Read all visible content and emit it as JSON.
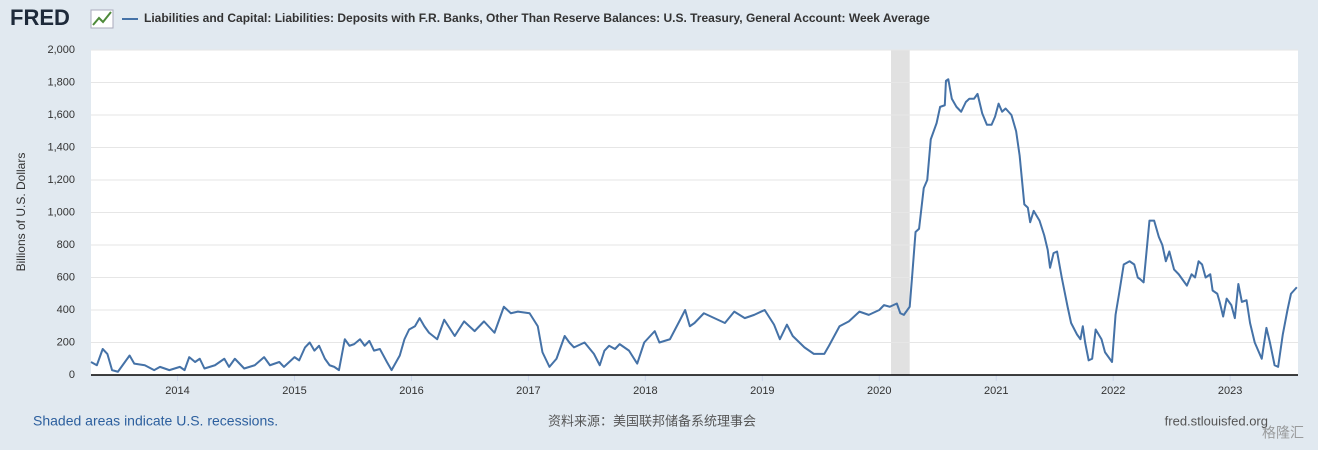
{
  "logo": "FRED",
  "footer": {
    "note": "Shaded areas indicate U.S. recessions.",
    "source": "资料来源：美国联邦储备系统理事会",
    "site": "fred.stlouisfed.org",
    "watermark": "格隆汇"
  },
  "chart_data": {
    "type": "line",
    "ylabel": "Billions of U.S. Dollars",
    "xlim": [
      2013.26,
      2023.58
    ],
    "xticks": [
      2014,
      2015,
      2016,
      2017,
      2018,
      2019,
      2020,
      2021,
      2022,
      2023
    ],
    "ylim": [
      0,
      2000
    ],
    "yticks": [
      0,
      200,
      400,
      600,
      800,
      {
        "value": 1000,
        "label": "1,000"
      },
      {
        "value": 1200,
        "label": "1,200"
      },
      {
        "value": 1400,
        "label": "1,400"
      },
      {
        "value": 1600,
        "label": "1,600"
      },
      {
        "value": 1800,
        "label": "1,800"
      },
      {
        "value": 2000,
        "label": "2,000"
      }
    ],
    "grid": true,
    "recessions": [
      {
        "start": 2020.1,
        "end": 2020.26
      }
    ],
    "series": [
      {
        "name": "Liabilities and Capital: Liabilities: Deposits with F.R. Banks, Other Than Reserve Balances: U.S. Treasury, General Account: Week Average",
        "color": "#4572a7",
        "x": [
          2013.26,
          2013.31,
          2013.36,
          2013.4,
          2013.44,
          2013.49,
          2013.55,
          2013.59,
          2013.63,
          2013.72,
          2013.8,
          2013.85,
          2013.93,
          2014.02,
          2014.06,
          2014.1,
          2014.15,
          2014.19,
          2014.23,
          2014.32,
          2014.4,
          2014.44,
          2014.49,
          2014.57,
          2014.66,
          2014.74,
          2014.79,
          2014.87,
          2014.91,
          2015.0,
          2015.04,
          2015.09,
          2015.13,
          2015.17,
          2015.21,
          2015.26,
          2015.3,
          2015.34,
          2015.38,
          2015.43,
          2015.47,
          2015.51,
          2015.56,
          2015.6,
          2015.64,
          2015.68,
          2015.73,
          2015.79,
          2015.83,
          2015.9,
          2015.94,
          2015.98,
          2016.03,
          2016.07,
          2016.11,
          2016.15,
          2016.22,
          2016.28,
          2016.37,
          2016.45,
          2016.54,
          2016.62,
          2016.71,
          2016.79,
          2016.85,
          2016.91,
          2017.01,
          2017.08,
          2017.12,
          2017.18,
          2017.24,
          2017.31,
          2017.35,
          2017.39,
          2017.48,
          2017.56,
          2017.61,
          2017.65,
          2017.69,
          2017.74,
          2017.78,
          2017.86,
          2017.93,
          2017.99,
          2018.08,
          2018.12,
          2018.21,
          2018.29,
          2018.34,
          2018.38,
          2018.42,
          2018.5,
          2018.59,
          2018.68,
          2018.76,
          2018.85,
          2018.93,
          2019.02,
          2019.1,
          2019.15,
          2019.21,
          2019.26,
          2019.36,
          2019.44,
          2019.53,
          2019.57,
          2019.66,
          2019.74,
          2019.83,
          2019.91,
          2020.0,
          2020.04,
          2020.09,
          2020.15,
          2020.18,
          2020.21,
          2020.26,
          2020.28,
          2020.31,
          2020.34,
          2020.38,
          2020.41,
          2020.44,
          2020.49,
          2020.52,
          2020.56,
          2020.57,
          2020.59,
          2020.62,
          2020.66,
          2020.7,
          2020.74,
          2020.77,
          2020.81,
          2020.84,
          2020.88,
          2020.92,
          2020.96,
          2020.99,
          2021.02,
          2021.05,
          2021.08,
          2021.13,
          2021.17,
          2021.2,
          2021.22,
          2021.24,
          2021.27,
          2021.29,
          2021.32,
          2021.37,
          2021.41,
          2021.44,
          2021.46,
          2021.49,
          2021.52,
          2021.56,
          2021.61,
          2021.64,
          2021.69,
          2021.72,
          2021.74,
          2021.76,
          2021.79,
          2021.82,
          2021.85,
          2021.9,
          2021.93,
          2021.97,
          2021.99,
          2022.02,
          2022.05,
          2022.09,
          2022.14,
          2022.18,
          2022.21,
          2022.23,
          2022.26,
          2022.31,
          2022.35,
          2022.39,
          2022.42,
          2022.45,
          2022.48,
          2022.52,
          2022.56,
          2022.6,
          2022.63,
          2022.67,
          2022.7,
          2022.73,
          2022.76,
          2022.79,
          2022.83,
          2022.85,
          2022.89,
          2022.91,
          2022.94,
          2022.97,
          2023.01,
          2023.04,
          2023.07,
          2023.1,
          2023.14,
          2023.17,
          2023.21,
          2023.24,
          2023.27,
          2023.31,
          2023.34,
          2023.38,
          2023.41,
          2023.45,
          2023.49,
          2023.52,
          2023.57
        ],
        "values": [
          80,
          60,
          160,
          130,
          30,
          20,
          80,
          120,
          70,
          60,
          30,
          50,
          30,
          50,
          30,
          110,
          80,
          100,
          40,
          60,
          100,
          50,
          100,
          40,
          60,
          110,
          60,
          80,
          50,
          110,
          90,
          170,
          200,
          150,
          180,
          100,
          60,
          50,
          30,
          220,
          180,
          190,
          220,
          180,
          210,
          150,
          160,
          80,
          30,
          120,
          220,
          280,
          300,
          350,
          300,
          260,
          220,
          340,
          240,
          330,
          270,
          330,
          260,
          420,
          380,
          390,
          380,
          300,
          140,
          50,
          100,
          240,
          200,
          170,
          200,
          130,
          60,
          150,
          180,
          160,
          190,
          150,
          70,
          200,
          270,
          200,
          220,
          330,
          400,
          300,
          320,
          380,
          350,
          320,
          390,
          350,
          370,
          400,
          310,
          220,
          310,
          240,
          170,
          130,
          130,
          180,
          300,
          330,
          390,
          370,
          400,
          430,
          420,
          440,
          380,
          370,
          420,
          600,
          880,
          900,
          1150,
          1200,
          1450,
          1550,
          1650,
          1660,
          1810,
          1820,
          1700,
          1650,
          1620,
          1680,
          1700,
          1700,
          1730,
          1610,
          1540,
          1540,
          1590,
          1670,
          1620,
          1640,
          1600,
          1500,
          1350,
          1200,
          1050,
          1030,
          940,
          1010,
          950,
          860,
          770,
          660,
          750,
          760,
          600,
          420,
          320,
          250,
          220,
          300,
          200,
          90,
          100,
          280,
          220,
          140,
          100,
          80,
          370,
          500,
          680,
          700,
          680,
          600,
          590,
          570,
          950,
          950,
          850,
          800,
          700,
          760,
          650,
          620,
          580,
          550,
          620,
          600,
          700,
          680,
          600,
          620,
          520,
          500,
          450,
          360,
          470,
          430,
          350,
          560,
          450,
          460,
          320,
          200,
          150,
          100,
          290,
          200,
          60,
          50,
          250,
          400,
          500,
          540
        ]
      }
    ]
  }
}
